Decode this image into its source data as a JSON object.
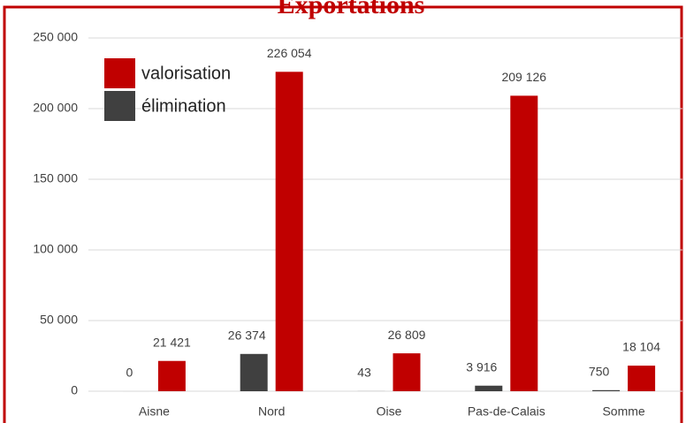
{
  "chart_data": {
    "type": "bar",
    "title": "Exportations",
    "categories": [
      "Aisne",
      "Nord",
      "Oise",
      "Pas-de-Calais",
      "Somme"
    ],
    "series": [
      {
        "name": "élimination",
        "color": "#404040",
        "values": [
          0,
          26374,
          43,
          3916,
          750
        ],
        "value_labels": [
          "0",
          "26 374",
          "43",
          "3 916",
          "750"
        ]
      },
      {
        "name": "valorisation",
        "color": "#c00000",
        "values": [
          21421,
          226054,
          26809,
          209126,
          18104
        ],
        "value_labels": [
          "21 421",
          "226 054",
          "26 809",
          "209 126",
          "18 104"
        ]
      }
    ],
    "ylim": [
      0,
      250000
    ],
    "yticks": [
      {
        "value": 0,
        "label": "0"
      },
      {
        "value": 50000,
        "label": "50 000"
      },
      {
        "value": 100000,
        "label": "100 000"
      },
      {
        "value": 150000,
        "label": "150 000"
      },
      {
        "value": 200000,
        "label": "200 000"
      },
      {
        "value": 250000,
        "label": "250 000"
      }
    ],
    "grid": true,
    "legend": "upper left"
  }
}
